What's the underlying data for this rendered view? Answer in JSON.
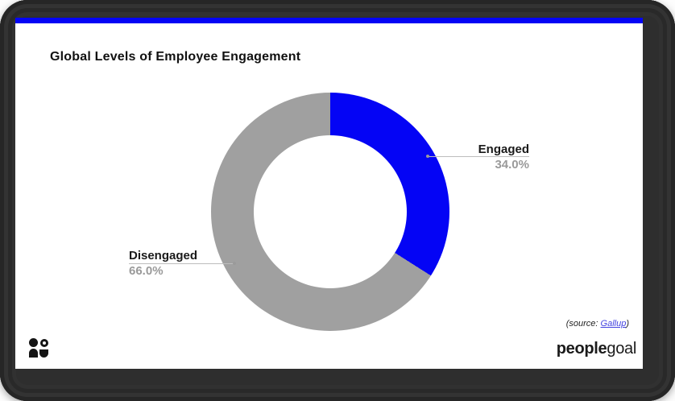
{
  "chart_data": {
    "type": "pie",
    "subtype": "donut",
    "title": "Global Levels of Employee Engagement",
    "categories": [
      "Engaged",
      "Disengaged"
    ],
    "values": [
      34.0,
      66.0
    ],
    "display_values": [
      "34.0%",
      "66.0%"
    ],
    "colors": [
      "#0404f5",
      "#a0a0a0"
    ],
    "start_angle_deg": 0,
    "direction": "clockwise",
    "hole_ratio": 0.64,
    "legend": "callout labels with leader lines"
  },
  "header": {
    "accent_color": "#0404f5"
  },
  "source": {
    "prefix": "(source: ",
    "link_text": "Gallup",
    "suffix": ")",
    "link_color": "#4343e0"
  },
  "logo": {
    "bold_part": "people",
    "light_part": "goal",
    "icon": "two-figures-people-icon"
  }
}
